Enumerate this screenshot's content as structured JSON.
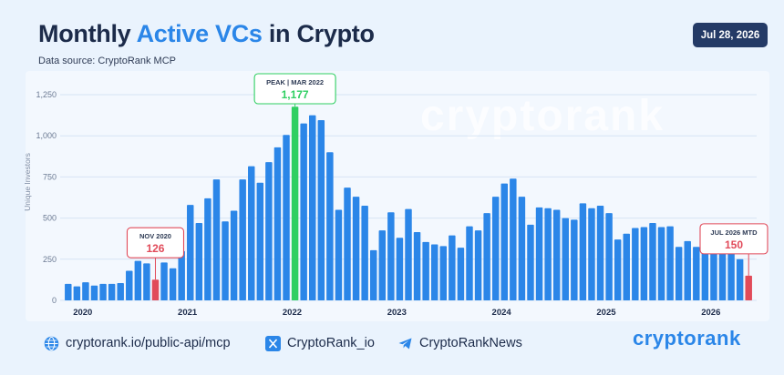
{
  "header": {
    "title_part1": "Monthly ",
    "title_accent": "Active VCs",
    "title_part2": " in Crypto",
    "subtitle": "Data source: CryptoRank MCP",
    "date": "Jul 28, 2026"
  },
  "watermark": "cryptorank",
  "footer": {
    "link_api": "cryptorank.io/public-api/mcp",
    "link_x": "CryptoRank_io",
    "link_telegram": "CryptoRankNews",
    "brand": "cryptorank"
  },
  "colors": {
    "bar": "#2b86e8",
    "peak": "#2fcf62",
    "highlight_red": "#e14b5a",
    "accent": "#2b86e8",
    "title": "#1c2b4a"
  },
  "icons": [
    "globe-icon",
    "x-logo-icon",
    "telegram-icon"
  ],
  "chart_data": {
    "type": "bar",
    "ylabel": "Unique Investors",
    "ylim": [
      0,
      1250
    ],
    "yticks": [
      0,
      250,
      500,
      750,
      "1,000",
      "1,250"
    ],
    "year_labels": [
      "2020",
      "2021",
      "2022",
      "2023",
      "2024",
      "2025",
      "2026"
    ],
    "grid": "horizontal",
    "start_month": "2020-01",
    "values": [
      100,
      85,
      110,
      90,
      100,
      100,
      105,
      180,
      240,
      225,
      126,
      230,
      195,
      300,
      580,
      470,
      620,
      735,
      480,
      545,
      735,
      815,
      715,
      840,
      930,
      1005,
      1177,
      1075,
      1125,
      1095,
      900,
      550,
      685,
      630,
      575,
      305,
      425,
      535,
      380,
      555,
      415,
      355,
      340,
      330,
      395,
      320,
      450,
      425,
      530,
      630,
      710,
      740,
      630,
      460,
      565,
      560,
      550,
      500,
      490,
      590,
      560,
      575,
      530,
      370,
      405,
      440,
      445,
      470,
      445,
      450,
      325,
      360,
      325,
      360,
      310,
      340,
      290,
      250,
      150
    ],
    "annotations": [
      {
        "label": "PEAK | MAR 2022",
        "value": "1,177",
        "index": 26,
        "color": "#2fcf62"
      },
      {
        "label": "NOV 2020",
        "value": "126",
        "index": 10,
        "color": "#e14b5a"
      },
      {
        "label": "JUL 2026 MTD",
        "value": "150",
        "index": 78,
        "color": "#e14b5a"
      }
    ]
  }
}
